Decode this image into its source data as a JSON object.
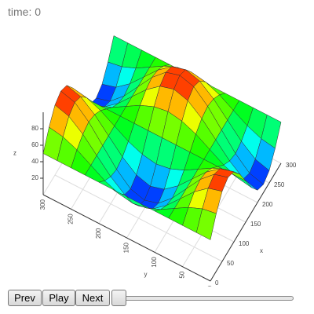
{
  "frame_label": "time: 0",
  "controls": {
    "prev": "Prev",
    "play": "Play",
    "next": "Next"
  },
  "chart_data": {
    "type": "surface",
    "x": [
      0,
      25,
      50,
      75,
      100,
      125,
      150,
      175,
      200,
      225,
      250,
      275,
      300
    ],
    "y": [
      0,
      25,
      50,
      75,
      100,
      125,
      150,
      175,
      200,
      225,
      250,
      275,
      300
    ],
    "z": [
      [
        50,
        50,
        50,
        50,
        50,
        50,
        50,
        50,
        50,
        50,
        50,
        50,
        50
      ],
      [
        70,
        67,
        60,
        50,
        40,
        33,
        30,
        33,
        40,
        50,
        60,
        67,
        70
      ],
      [
        85,
        80,
        67,
        50,
        33,
        20,
        15,
        20,
        33,
        50,
        67,
        80,
        85
      ],
      [
        90,
        85,
        70,
        50,
        30,
        15,
        10,
        15,
        30,
        50,
        70,
        85,
        90
      ],
      [
        85,
        80,
        67,
        50,
        33,
        20,
        15,
        20,
        33,
        50,
        67,
        80,
        85
      ],
      [
        70,
        67,
        60,
        50,
        40,
        33,
        30,
        33,
        40,
        50,
        60,
        67,
        70
      ],
      [
        50,
        50,
        50,
        50,
        50,
        50,
        50,
        50,
        50,
        50,
        50,
        50,
        50
      ],
      [
        30,
        33,
        40,
        50,
        60,
        67,
        70,
        67,
        60,
        50,
        40,
        33,
        30
      ],
      [
        15,
        20,
        33,
        50,
        67,
        80,
        85,
        80,
        67,
        50,
        33,
        20,
        15
      ],
      [
        10,
        15,
        30,
        50,
        70,
        85,
        90,
        85,
        70,
        50,
        30,
        15,
        10
      ],
      [
        15,
        20,
        33,
        50,
        67,
        80,
        85,
        80,
        67,
        50,
        33,
        20,
        15
      ],
      [
        30,
        33,
        40,
        50,
        60,
        67,
        70,
        67,
        60,
        50,
        40,
        33,
        30
      ],
      [
        50,
        50,
        50,
        50,
        50,
        50,
        50,
        50,
        50,
        50,
        50,
        50,
        50
      ]
    ],
    "xlim": [
      0,
      300
    ],
    "ylim": [
      0,
      300
    ],
    "zlim": [
      0,
      100
    ],
    "xticks": [
      0,
      50,
      100,
      150,
      200,
      250,
      300
    ],
    "yticks": [
      0,
      50,
      100,
      150,
      200,
      250,
      300
    ],
    "zticks": [
      20,
      40,
      60,
      80
    ],
    "xlabel": "x",
    "ylabel": "y",
    "zlabel": "z",
    "colorscale": "jet",
    "grid": true
  }
}
